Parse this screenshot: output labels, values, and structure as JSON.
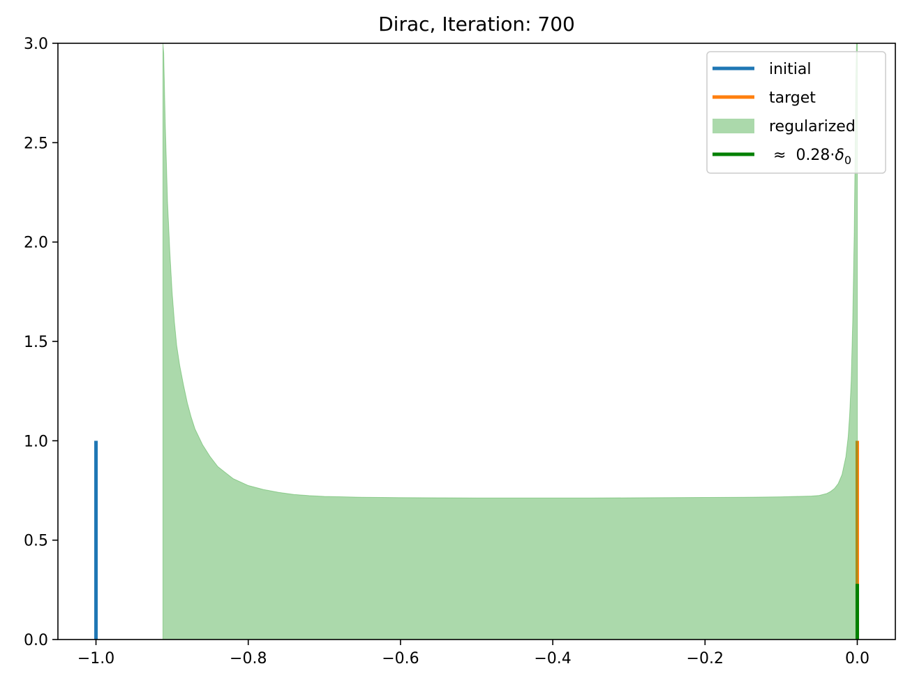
{
  "chart_data": {
    "type": "area",
    "title": "Dirac, Iteration: 700",
    "xlabel": "",
    "ylabel": "",
    "xlim": [
      -1.05,
      0.05
    ],
    "ylim": [
      0,
      3.0
    ],
    "x_ticks": [
      -1.0,
      -0.8,
      -0.6,
      -0.4,
      -0.2,
      0.0
    ],
    "x_tick_labels": [
      "−1.0",
      "−0.8",
      "−0.6",
      "−0.4",
      "−0.2",
      "0.0"
    ],
    "y_ticks": [
      0.0,
      0.5,
      1.0,
      1.5,
      2.0,
      2.5,
      3.0
    ],
    "y_tick_labels": [
      "0.0",
      "0.5",
      "1.0",
      "1.5",
      "2.0",
      "2.5",
      "3.0"
    ],
    "grid": false,
    "legend_position": "top-right",
    "series": [
      {
        "name": "initial",
        "kind": "vline",
        "color": "#1f77b4",
        "x": -1.0,
        "y0": 0,
        "y1": 1.0
      },
      {
        "name": "target",
        "kind": "vline",
        "color": "#ff7f0e",
        "x": 0.0,
        "y0": 0,
        "y1": 1.0
      },
      {
        "name": "regularized",
        "kind": "fill",
        "color": "#2ca02c",
        "alpha": 0.4,
        "x": [
          -0.912,
          -0.911,
          -0.909,
          -0.906,
          -0.903,
          -0.9,
          -0.897,
          -0.894,
          -0.89,
          -0.885,
          -0.88,
          -0.875,
          -0.87,
          -0.86,
          -0.85,
          -0.84,
          -0.83,
          -0.82,
          -0.8,
          -0.78,
          -0.76,
          -0.74,
          -0.72,
          -0.7,
          -0.65,
          -0.6,
          -0.55,
          -0.5,
          -0.45,
          -0.4,
          -0.35,
          -0.3,
          -0.25,
          -0.2,
          -0.15,
          -0.1,
          -0.08,
          -0.06,
          -0.05,
          -0.04,
          -0.035,
          -0.03,
          -0.025,
          -0.02,
          -0.015,
          -0.012,
          -0.01,
          -0.008,
          -0.006,
          -0.004,
          -0.003,
          -0.002,
          -0.001,
          0.0
        ],
        "y": [
          3.0,
          2.95,
          2.6,
          2.2,
          1.95,
          1.75,
          1.6,
          1.48,
          1.38,
          1.28,
          1.19,
          1.12,
          1.06,
          0.98,
          0.92,
          0.87,
          0.84,
          0.81,
          0.775,
          0.755,
          0.74,
          0.73,
          0.724,
          0.72,
          0.716,
          0.714,
          0.713,
          0.712,
          0.712,
          0.712,
          0.712,
          0.713,
          0.714,
          0.715,
          0.716,
          0.718,
          0.72,
          0.722,
          0.725,
          0.735,
          0.745,
          0.76,
          0.785,
          0.83,
          0.92,
          1.02,
          1.13,
          1.3,
          1.6,
          2.05,
          2.4,
          2.8,
          3.0,
          3.0
        ]
      },
      {
        "name": "≈ 0.28·δ₀",
        "kind": "vline",
        "color": "#008000",
        "x": 0.0,
        "y0": 0,
        "y1": 0.28
      }
    ],
    "legend": {
      "items": [
        {
          "label": "initial",
          "swatch": "line",
          "color": "#1f77b4"
        },
        {
          "label": "target",
          "swatch": "line",
          "color": "#ff7f0e"
        },
        {
          "label": "regularized",
          "swatch": "patch",
          "color": "#2ca02c"
        },
        {
          "label_prefix": "≈",
          "label_value": "0.28",
          "label_dot": "·",
          "label_symbol": "δ",
          "label_sub": "0",
          "swatch": "line",
          "color": "#008000"
        }
      ]
    }
  }
}
